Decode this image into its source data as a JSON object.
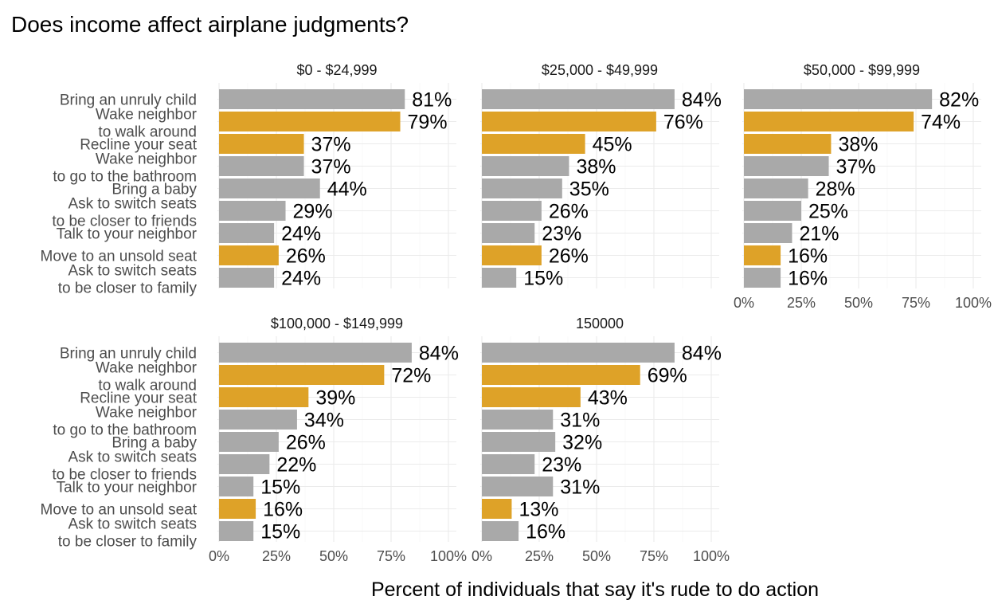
{
  "chart_data": {
    "type": "bar",
    "orientation": "horizontal",
    "title": "Does income affect airplane judgments?",
    "xlabel": "Percent of individuals that say it's rude to do action",
    "ylabel": "",
    "xlim": [
      0,
      100
    ],
    "x_ticks": [
      "0%",
      "25%",
      "50%",
      "75%",
      "100%"
    ],
    "categories": [
      "Bring an unruly child",
      "Wake neighbor\nto walk around",
      "Recline your seat",
      "Wake neighbor\nto go to the bathroom",
      "Bring a baby",
      "Ask to switch seats\nto be closer to friends",
      "Talk to your neighbor",
      "Move to an unsold seat",
      "Ask to switch seats\nto be closer to family"
    ],
    "highlighted_categories": [
      "Wake neighbor\nto walk around",
      "Recline your seat",
      "Move to an unsold seat"
    ],
    "colors": {
      "default": "#a9a9a9",
      "highlight": "#dea228"
    },
    "grid": true,
    "facets": [
      {
        "name": "$0 - $24,999",
        "values": [
          81,
          79,
          37,
          37,
          44,
          29,
          24,
          26,
          24
        ],
        "labels": [
          "81%",
          "79%",
          "37%",
          "37%",
          "44%",
          "29%",
          "24%",
          "26%",
          "24%"
        ]
      },
      {
        "name": "$25,000 - $49,999",
        "values": [
          84,
          76,
          45,
          38,
          35,
          26,
          23,
          26,
          15
        ],
        "labels": [
          "84%",
          "76%",
          "45%",
          "38%",
          "35%",
          "26%",
          "23%",
          "26%",
          "15%"
        ]
      },
      {
        "name": "$50,000 - $99,999",
        "values": [
          82,
          74,
          38,
          37,
          28,
          25,
          21,
          16,
          16
        ],
        "labels": [
          "82%",
          "74%",
          "38%",
          "37%",
          "28%",
          "25%",
          "21%",
          "16%",
          "16%"
        ]
      },
      {
        "name": "$100,000 - $149,999",
        "values": [
          84,
          72,
          39,
          34,
          26,
          22,
          15,
          16,
          15
        ],
        "labels": [
          "84%",
          "72%",
          "39%",
          "34%",
          "26%",
          "22%",
          "15%",
          "16%",
          "15%"
        ]
      },
      {
        "name": "150000",
        "values": [
          84,
          69,
          43,
          31,
          32,
          23,
          31,
          13,
          16
        ],
        "labels": [
          "84%",
          "69%",
          "43%",
          "31%",
          "32%",
          "23%",
          "31%",
          "13%",
          "16%"
        ]
      }
    ]
  }
}
